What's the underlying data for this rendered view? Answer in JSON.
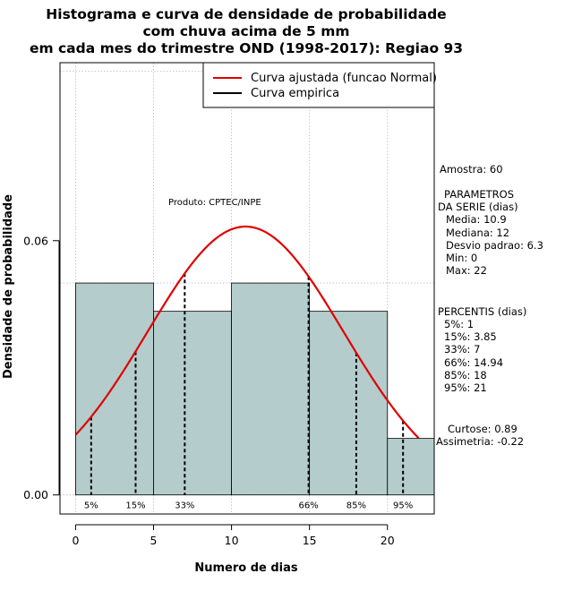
{
  "chart_data": {
    "type": "bar",
    "title_lines": [
      "Histograma e curva de densidade de probabilidade",
      "com chuva acima de 5 mm",
      "em cada mes do trimestre OND (1998-2017): Regiao 93"
    ],
    "xlabel": "Numero de dias",
    "ylabel": "Densidade de probabilidade",
    "xlim": [
      -1,
      23
    ],
    "ylim": [
      -0.0045,
      0.102
    ],
    "x_ticks": [
      0,
      5,
      10,
      15,
      20
    ],
    "x_tick_labels": [
      "0",
      "5",
      "10",
      "15",
      "20"
    ],
    "y_ticks": [
      0.0,
      0.06
    ],
    "y_tick_labels": [
      "0.00",
      "0.06"
    ],
    "y_grid": [
      0.0,
      0.05,
      0.1
    ],
    "bins": [
      {
        "start": 0,
        "end": 5,
        "density": 0.05
      },
      {
        "start": 5,
        "end": 10,
        "density": 0.04333
      },
      {
        "start": 10,
        "end": 15,
        "density": 0.05
      },
      {
        "start": 15,
        "end": 20,
        "density": 0.04333
      },
      {
        "start": 20,
        "end": 23,
        "density": 0.01333
      }
    ],
    "normal_curve": {
      "mean": 10.9,
      "sd": 6.3,
      "x_from": 0,
      "x_to": 22
    },
    "percentiles": [
      {
        "label": "5%",
        "x": 1
      },
      {
        "label": "15%",
        "x": 3.85
      },
      {
        "label": "33%",
        "x": 7
      },
      {
        "label": "66%",
        "x": 14.94
      },
      {
        "label": "85%",
        "x": 18
      },
      {
        "label": "95%",
        "x": 21
      }
    ],
    "legend": {
      "placement": "top-right",
      "items": [
        {
          "label": "Curva ajustada (funcao Normal)",
          "color": "#e00000"
        },
        {
          "label": "Curva empirica",
          "color": "#000000"
        }
      ]
    },
    "colors": {
      "bar_fill": "#b4cccc",
      "bar_stroke": "#000000",
      "curve": "#e00000",
      "grid": "#bbbbbb"
    },
    "product_note": "Produto: CPTEC/INPE",
    "stats": {
      "amostra": "Amostra: 60",
      "param_title_1": "PARAMETROS",
      "param_title_2": "DA SERIE (dias)",
      "media": "Media: 10.9",
      "mediana": "Mediana: 12",
      "desvio": "Desvio padrao: 6.3",
      "min": "Min: 0",
      "max": "Max: 22",
      "percentis_title": "PERCENTIS (dias)",
      "p5": "5%: 1",
      "p15": "15%: 3.85",
      "p33": "33%: 7",
      "p66": "66%: 14.94",
      "p85": "85%: 18",
      "p95": "95%: 21",
      "curtose": "Curtose: 0.89",
      "assimetria": "Assimetria: -0.22"
    }
  }
}
